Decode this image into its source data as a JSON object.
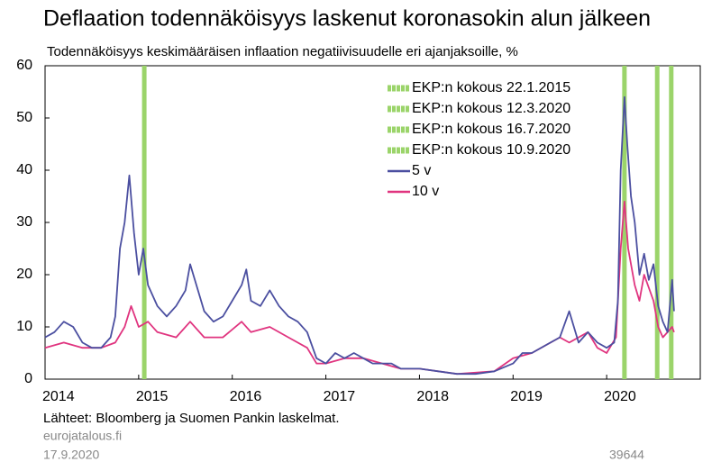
{
  "chart_data": {
    "type": "line",
    "title": "Deflaation todennäköisyys laskenut koronasokin alun jälkeen",
    "subtitle": "Todennäköisyys keskimääräisen inflaation negatiivisuudelle eri ajanjaksoille, %",
    "source": "Lähteet: Bloomberg ja Suomen Pankin laskelmat.",
    "website": "eurojatalous.fi",
    "date": "17.9.2020",
    "chart_id": "39644",
    "xlim": [
      2014,
      2021
    ],
    "xticks": [
      2014,
      2015,
      2016,
      2017,
      2018,
      2019,
      2020
    ],
    "ylim": [
      0,
      60
    ],
    "yticks": [
      0,
      10,
      20,
      30,
      40,
      50,
      60
    ],
    "events": [
      {
        "name": "EKP:n kokous 22.1.2015",
        "x": 2015.06,
        "color": "#9bd46a"
      },
      {
        "name": "EKP:n kokous 12.3.2020",
        "x": 2020.19,
        "color": "#9bd46a"
      },
      {
        "name": "EKP:n kokous 16.7.2020",
        "x": 2020.54,
        "color": "#9bd46a"
      },
      {
        "name": "EKP:n kokous 10.9.2020",
        "x": 2020.69,
        "color": "#9bd46a"
      }
    ],
    "series": [
      {
        "name": "5 v",
        "color": "#4b4fa0",
        "x": [
          2014.0,
          2014.1,
          2014.2,
          2014.3,
          2014.4,
          2014.5,
          2014.6,
          2014.7,
          2014.75,
          2014.8,
          2014.85,
          2014.9,
          2014.95,
          2015.0,
          2015.05,
          2015.1,
          2015.2,
          2015.3,
          2015.4,
          2015.5,
          2015.55,
          2015.6,
          2015.7,
          2015.8,
          2015.9,
          2016.0,
          2016.1,
          2016.15,
          2016.2,
          2016.3,
          2016.4,
          2016.5,
          2016.6,
          2016.7,
          2016.8,
          2016.9,
          2017.0,
          2017.1,
          2017.2,
          2017.3,
          2017.4,
          2017.5,
          2017.6,
          2017.7,
          2017.8,
          2017.9,
          2018.0,
          2018.2,
          2018.4,
          2018.6,
          2018.8,
          2019.0,
          2019.1,
          2019.2,
          2019.4,
          2019.5,
          2019.6,
          2019.7,
          2019.8,
          2019.9,
          2020.0,
          2020.08,
          2020.12,
          2020.15,
          2020.19,
          2020.22,
          2020.26,
          2020.3,
          2020.35,
          2020.4,
          2020.45,
          2020.5,
          2020.55,
          2020.6,
          2020.65,
          2020.7,
          2020.72
        ],
        "values": [
          8,
          9,
          11,
          10,
          7,
          6,
          6,
          8,
          12,
          25,
          30,
          39,
          28,
          20,
          25,
          18,
          14,
          12,
          14,
          17,
          22,
          19,
          13,
          11,
          12,
          15,
          18,
          21,
          15,
          14,
          17,
          14,
          12,
          11,
          9,
          4,
          3,
          5,
          4,
          5,
          4,
          3,
          3,
          3,
          2,
          2,
          2,
          1.5,
          1,
          1,
          1.5,
          3,
          5,
          5,
          7,
          8,
          13,
          7,
          9,
          7,
          6,
          7,
          15,
          40,
          54,
          45,
          35,
          30,
          20,
          24,
          19,
          22,
          14,
          11,
          9,
          19,
          13
        ]
      },
      {
        "name": "10 v",
        "color": "#e0347f",
        "x": [
          2014.0,
          2014.2,
          2014.4,
          2014.6,
          2014.75,
          2014.85,
          2014.92,
          2015.0,
          2015.1,
          2015.2,
          2015.4,
          2015.55,
          2015.7,
          2015.9,
          2016.1,
          2016.2,
          2016.4,
          2016.6,
          2016.8,
          2016.9,
          2017.0,
          2017.2,
          2017.4,
          2017.6,
          2017.8,
          2018.0,
          2018.4,
          2018.8,
          2019.0,
          2019.2,
          2019.5,
          2019.6,
          2019.8,
          2019.9,
          2020.0,
          2020.1,
          2020.15,
          2020.19,
          2020.23,
          2020.3,
          2020.35,
          2020.4,
          2020.5,
          2020.55,
          2020.6,
          2020.7,
          2020.72
        ],
        "values": [
          6,
          7,
          6,
          6,
          7,
          10,
          14,
          10,
          11,
          9,
          8,
          11,
          8,
          8,
          11,
          9,
          10,
          8,
          6,
          3,
          3,
          4,
          4,
          3,
          2,
          2,
          1,
          1.5,
          4,
          5,
          8,
          7,
          9,
          6,
          5,
          8,
          25,
          34,
          25,
          18,
          15,
          20,
          15,
          10,
          8,
          10,
          9
        ]
      }
    ]
  }
}
